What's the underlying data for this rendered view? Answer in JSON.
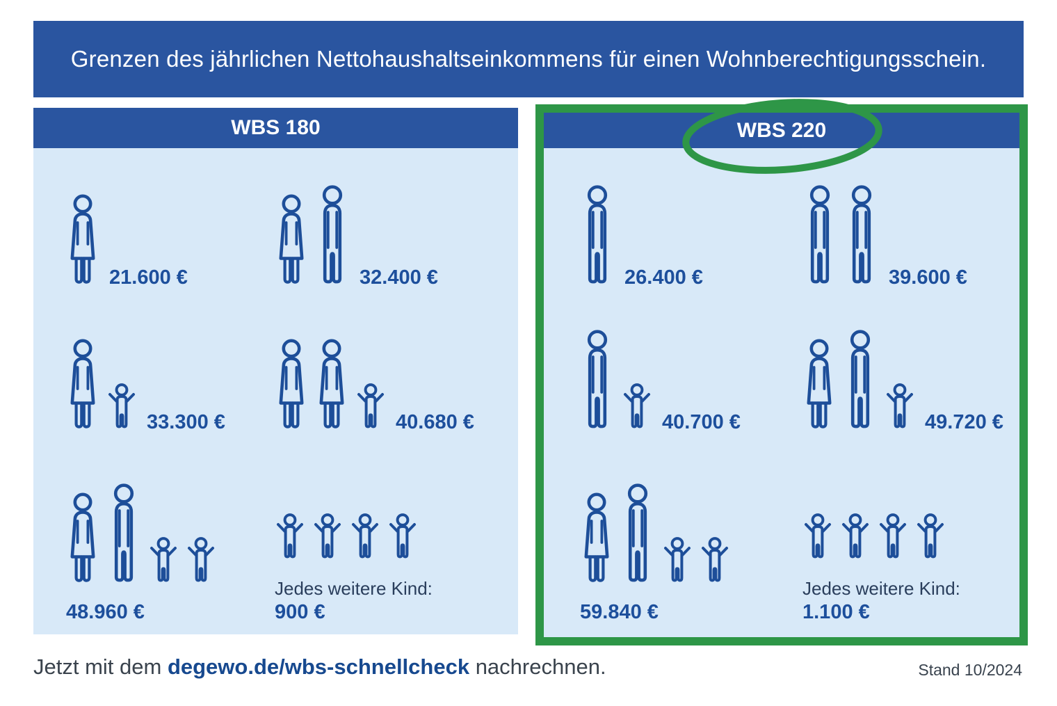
{
  "title": "Grenzen des jährlichen Nettohaushaltseinkommens für einen Wohnberechtigungsschein.",
  "panels": [
    {
      "header": "WBS 180",
      "highlighted": false,
      "rows": [
        {
          "cells": [
            {
              "icons": [
                "woman"
              ],
              "value": "21.600 €"
            },
            {
              "icons": [
                "woman",
                "man"
              ],
              "value": "32.400 €"
            }
          ]
        },
        {
          "cells": [
            {
              "icons": [
                "woman",
                "child"
              ],
              "value": "33.300 €"
            },
            {
              "icons": [
                "woman",
                "woman",
                "child"
              ],
              "value": "40.680 €"
            }
          ]
        },
        {
          "cells": [
            {
              "icons": [
                "woman",
                "man",
                "child",
                "child"
              ],
              "value": "48.960 €",
              "stacked": true
            },
            {
              "icons": [
                "child",
                "child",
                "child",
                "child"
              ],
              "caption": "Jedes weitere Kind:",
              "value": "900 €",
              "stacked": true
            }
          ]
        }
      ]
    },
    {
      "header": "WBS 220",
      "highlighted": true,
      "rows": [
        {
          "cells": [
            {
              "icons": [
                "man"
              ],
              "value": "26.400 €"
            },
            {
              "icons": [
                "man",
                "man"
              ],
              "value": "39.600 €"
            }
          ]
        },
        {
          "cells": [
            {
              "icons": [
                "man",
                "child"
              ],
              "value": "40.700 €"
            },
            {
              "icons": [
                "woman",
                "man",
                "child"
              ],
              "value": "49.720 €"
            }
          ]
        },
        {
          "cells": [
            {
              "icons": [
                "woman",
                "man",
                "child",
                "child"
              ],
              "value": "59.840 €",
              "stacked": true
            },
            {
              "icons": [
                "child",
                "child",
                "child",
                "child"
              ],
              "caption": "Jedes weitere Kind:",
              "value": "1.100 €",
              "stacked": true
            }
          ]
        }
      ]
    }
  ],
  "icons": {
    "woman": "woman-icon",
    "man": "man-icon",
    "child": "child-arms-up-icon"
  },
  "footer": {
    "prefix": "Jetzt mit dem ",
    "link": "degewo.de/wbs-schnellcheck",
    "suffix": " nachrechnen.",
    "stand": "Stand 10/2024"
  },
  "colors": {
    "header_blue": "#2A55A0",
    "panel_light_blue": "#D8E9F8",
    "icon_stroke_blue": "#1D4E99",
    "value_blue": "#1D4F9C",
    "caption_navy": "#2A3E5C",
    "highlight_green": "#2E9647",
    "footer_gray": "#3A434D",
    "title_text": "#FFFFFF"
  }
}
